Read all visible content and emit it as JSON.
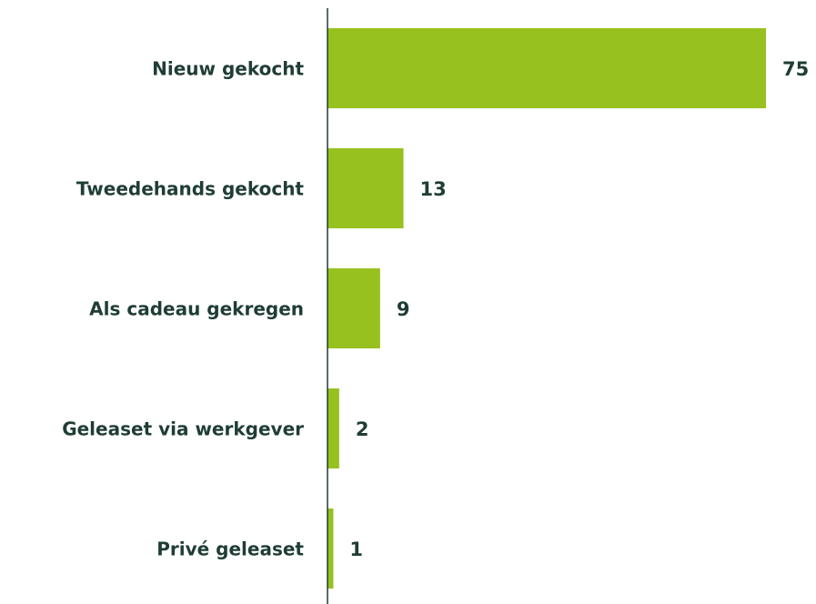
{
  "chart_data": {
    "type": "bar",
    "orientation": "horizontal",
    "categories": [
      "Nieuw gekocht",
      "Tweedehands gekocht",
      "Als cadeau gekregen",
      "Geleaset via werkgever",
      "Privé geleaset"
    ],
    "values": [
      75,
      13,
      9,
      2,
      1
    ],
    "color": "#97c11f"
  }
}
